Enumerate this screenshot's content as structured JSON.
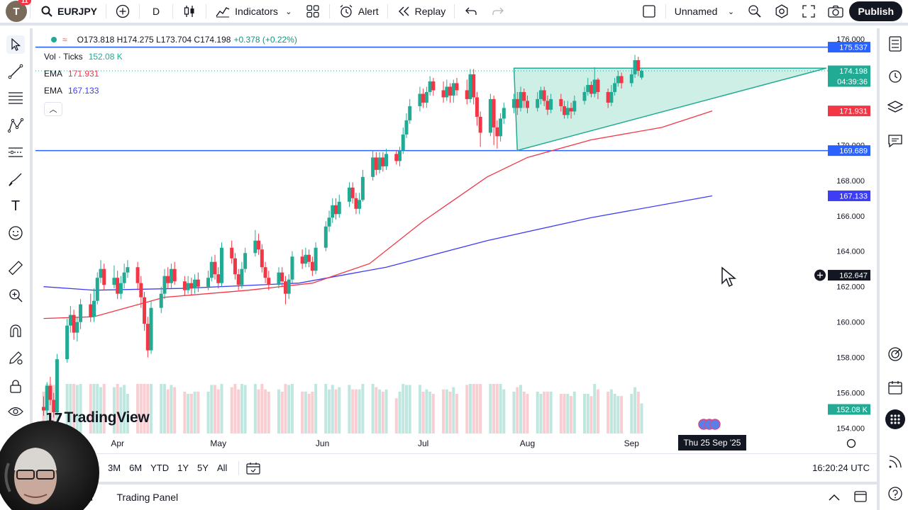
{
  "toolbar": {
    "avatar_letter": "T",
    "notif_count": "11",
    "symbol": "EURJPY",
    "interval": "D",
    "indicators_label": "Indicators",
    "alert_label": "Alert",
    "replay_label": "Replay",
    "layout_name": "Unnamed",
    "publish_label": "Publish"
  },
  "legend": {
    "ohlc": "O173.818 H174.275 L173.704 C174.198",
    "change": "+0.378 (+0.22%)",
    "volume_label": "Vol · Ticks",
    "volume_value": "152.08 K",
    "ema1_label": "EMA",
    "ema1_value": "171.931",
    "ema2_label": "EMA",
    "ema2_value": "167.133"
  },
  "price_scale": {
    "ticks": [
      "176.000",
      "170.000",
      "168.000",
      "166.000",
      "164.000",
      "162.000",
      "160.000",
      "158.000",
      "156.000",
      "154.000"
    ],
    "labels": [
      {
        "text": "175.537",
        "color": "#2962ff"
      },
      {
        "text": "174.198",
        "color": "#22ab94"
      },
      {
        "text": "04:39:36",
        "color": "#22ab94"
      },
      {
        "text": "171.931",
        "color": "#f23645"
      },
      {
        "text": "169.689",
        "color": "#2962ff"
      },
      {
        "text": "167.133",
        "color": "#3d3df5"
      },
      {
        "text": "162.647",
        "color": "#131722"
      },
      {
        "text": "152.08 K",
        "color": "#22ab94"
      }
    ]
  },
  "time_scale": {
    "months": [
      "Apr",
      "May",
      "Jun",
      "Jul",
      "Aug",
      "Sep"
    ],
    "crosshair_date": "Thu 25 Sep '25"
  },
  "bottom": {
    "ranges": [
      "3M",
      "6M",
      "YTD",
      "1Y",
      "5Y",
      "All"
    ],
    "clock": "16:20:24 UTC",
    "panel_tab_partial": "er",
    "trading_panel": "Trading Panel"
  },
  "watermark": "TradingView",
  "colors": {
    "up": "#22ab94",
    "down": "#f23645",
    "ema_fast": "#f23645",
    "ema_slow": "#3d3df5",
    "hline": "#2962ff",
    "triangle_fill": "#b9e8dc"
  },
  "chart_data": {
    "type": "candlestick",
    "symbol": "EURJPY",
    "interval": "D",
    "ylim": [
      153.7,
      176.6
    ],
    "x_range": [
      "2025-03-08",
      "2025-10-29"
    ],
    "horizontal_lines": [
      175.537,
      169.689
    ],
    "triangle": [
      [
        "2025-07-28",
        174.35
      ],
      [
        "2025-10-29",
        174.35
      ],
      [
        "2025-07-29",
        169.7
      ]
    ],
    "ema_fast": [
      [
        "2025-03-10",
        160.2
      ],
      [
        "2025-03-25",
        160.3
      ],
      [
        "2025-04-15",
        161.4
      ],
      [
        "2025-05-10",
        161.8
      ],
      [
        "2025-05-29",
        162.2
      ],
      [
        "2025-06-15",
        163.3
      ],
      [
        "2025-07-01",
        165.7
      ],
      [
        "2025-07-20",
        168.2
      ],
      [
        "2025-08-01",
        169.3
      ],
      [
        "2025-08-20",
        170.3
      ],
      [
        "2025-09-10",
        171.0
      ],
      [
        "2025-09-25",
        171.931
      ]
    ],
    "ema_slow": [
      [
        "2025-03-10",
        162.0
      ],
      [
        "2025-03-25",
        161.8
      ],
      [
        "2025-04-20",
        161.9
      ],
      [
        "2025-05-25",
        162.2
      ],
      [
        "2025-06-20",
        163.1
      ],
      [
        "2025-07-20",
        164.6
      ],
      [
        "2025-08-20",
        165.9
      ],
      [
        "2025-09-25",
        167.133
      ]
    ],
    "candles_ohlc": [
      [
        155.2,
        155.0,
        155.8,
        154.7
      ],
      [
        155.0,
        156.4,
        156.6,
        154.8
      ],
      [
        156.4,
        155.6,
        156.9,
        155.3
      ],
      [
        155.6,
        154.9,
        156.0,
        154.6
      ],
      [
        154.9,
        157.9,
        158.2,
        154.8
      ],
      [
        157.9,
        159.8,
        160.2,
        157.7
      ],
      [
        159.8,
        160.4,
        160.9,
        159.4
      ],
      [
        160.4,
        159.4,
        160.7,
        159.0
      ],
      [
        159.4,
        160.0,
        160.3,
        158.9
      ],
      [
        160.0,
        161.0,
        161.3,
        159.6
      ],
      [
        161.0,
        160.3,
        161.6,
        160.0
      ],
      [
        160.3,
        161.2,
        161.9,
        160.0
      ],
      [
        161.2,
        162.5,
        162.8,
        161.0
      ],
      [
        162.5,
        163.0,
        163.5,
        162.2
      ],
      [
        163.0,
        162.1,
        163.3,
        161.8
      ],
      [
        162.1,
        162.5,
        163.2,
        161.9
      ],
      [
        162.5,
        161.6,
        162.9,
        161.3
      ],
      [
        161.6,
        162.2,
        162.6,
        161.3
      ],
      [
        162.2,
        162.8,
        163.3,
        161.9
      ],
      [
        162.8,
        163.1,
        163.5,
        162.5
      ],
      [
        163.1,
        162.2,
        163.4,
        161.8
      ],
      [
        162.2,
        161.4,
        162.6,
        160.8
      ],
      [
        161.4,
        159.9,
        161.7,
        159.5
      ],
      [
        159.9,
        158.4,
        160.3,
        158.0
      ],
      [
        158.4,
        160.8,
        161.2,
        158.2
      ],
      [
        160.8,
        161.6,
        162.0,
        160.5
      ],
      [
        161.6,
        162.6,
        163.0,
        161.3
      ],
      [
        162.6,
        162.2,
        163.1,
        161.9
      ],
      [
        162.2,
        163.0,
        163.3,
        161.9
      ],
      [
        163.0,
        162.3,
        163.4,
        162.1
      ],
      [
        162.3,
        161.8,
        162.6,
        161.5
      ],
      [
        161.8,
        162.2,
        162.6,
        161.6
      ],
      [
        162.2,
        161.9,
        162.5,
        161.5
      ],
      [
        161.9,
        162.4,
        162.7,
        161.6
      ],
      [
        162.4,
        162.0,
        162.8,
        161.7
      ],
      [
        162.0,
        162.5,
        162.9,
        161.8
      ],
      [
        162.5,
        163.4,
        163.7,
        162.3
      ],
      [
        163.4,
        162.7,
        163.8,
        162.4
      ],
      [
        162.7,
        162.2,
        163.1,
        161.9
      ],
      [
        162.2,
        164.2,
        164.5,
        162.0
      ],
      [
        164.2,
        163.6,
        164.6,
        163.3
      ],
      [
        163.6,
        162.7,
        163.9,
        162.4
      ],
      [
        162.7,
        162.1,
        163.0,
        161.8
      ],
      [
        162.1,
        163.0,
        163.4,
        161.9
      ],
      [
        163.0,
        163.9,
        164.2,
        162.8
      ],
      [
        163.9,
        164.6,
        165.2,
        163.7
      ],
      [
        164.6,
        164.1,
        165.0,
        163.8
      ],
      [
        164.1,
        163.1,
        164.4,
        162.8
      ],
      [
        163.1,
        162.5,
        163.4,
        162.2
      ],
      [
        162.5,
        162.1,
        162.9,
        161.8
      ],
      [
        162.1,
        162.8,
        163.1,
        161.9
      ],
      [
        162.8,
        162.3,
        163.1,
        162.0
      ],
      [
        162.3,
        161.6,
        162.6,
        161.0
      ],
      [
        161.6,
        162.4,
        162.7,
        161.3
      ],
      [
        162.4,
        163.7,
        164.0,
        162.2
      ],
      [
        163.7,
        163.3,
        164.1,
        163.0
      ],
      [
        163.3,
        163.8,
        164.2,
        163.1
      ],
      [
        163.8,
        163.4,
        164.1,
        163.1
      ],
      [
        163.4,
        162.9,
        163.7,
        162.6
      ],
      [
        162.9,
        164.2,
        164.5,
        162.7
      ],
      [
        164.2,
        165.4,
        165.7,
        164.0
      ],
      [
        165.4,
        165.9,
        166.3,
        165.1
      ],
      [
        165.9,
        166.6,
        167.0,
        165.6
      ],
      [
        166.6,
        166.1,
        167.0,
        165.8
      ],
      [
        166.1,
        166.8,
        167.2,
        165.9
      ],
      [
        166.8,
        167.6,
        167.9,
        166.5
      ],
      [
        167.6,
        167.0,
        167.9,
        166.7
      ],
      [
        167.0,
        166.4,
        167.3,
        166.1
      ],
      [
        166.4,
        166.9,
        167.3,
        166.1
      ],
      [
        166.9,
        168.2,
        168.6,
        166.8
      ],
      [
        168.2,
        169.3,
        169.7,
        168.0
      ],
      [
        169.3,
        168.6,
        169.6,
        168.3
      ],
      [
        168.6,
        169.3,
        169.6,
        168.4
      ],
      [
        169.3,
        168.8,
        169.6,
        168.5
      ],
      [
        168.8,
        169.5,
        169.8,
        168.6
      ],
      [
        169.5,
        169.1,
        169.7,
        168.9
      ],
      [
        169.1,
        169.7,
        169.9,
        168.8
      ],
      [
        169.7,
        170.6,
        171.0,
        169.5
      ],
      [
        170.6,
        171.4,
        171.8,
        170.4
      ],
      [
        171.4,
        172.2,
        172.6,
        171.2
      ],
      [
        172.2,
        172.9,
        173.3,
        171.9
      ],
      [
        172.9,
        172.4,
        173.2,
        172.1
      ],
      [
        172.4,
        173.0,
        173.3,
        172.1
      ],
      [
        173.0,
        173.6,
        173.9,
        172.8
      ],
      [
        173.6,
        173.1,
        173.8,
        172.8
      ],
      [
        173.1,
        172.7,
        173.6,
        172.4
      ],
      [
        172.7,
        173.3,
        173.7,
        172.5
      ],
      [
        173.3,
        172.8,
        173.5,
        172.4
      ],
      [
        172.8,
        173.5,
        173.7,
        172.4
      ],
      [
        173.5,
        173.1,
        173.8,
        172.8
      ],
      [
        173.1,
        172.6,
        173.7,
        172.3
      ],
      [
        172.6,
        174.0,
        174.3,
        172.4
      ],
      [
        174.0,
        172.7,
        174.3,
        172.3
      ],
      [
        172.7,
        171.6,
        173.0,
        171.1
      ],
      [
        171.6,
        170.7,
        171.9,
        169.9
      ],
      [
        170.7,
        172.6,
        172.9,
        170.5
      ],
      [
        172.6,
        171.0,
        172.8,
        170.0
      ],
      [
        171.0,
        170.5,
        171.4,
        169.8
      ],
      [
        170.5,
        171.5,
        171.8,
        170.2
      ],
      [
        171.5,
        172.1,
        172.4,
        171.2
      ],
      [
        172.1,
        172.6,
        172.9,
        171.8
      ],
      [
        172.6,
        172.1,
        173.0,
        171.7
      ],
      [
        172.1,
        173.0,
        173.3,
        171.9
      ],
      [
        173.0,
        172.5,
        173.2,
        172.1
      ],
      [
        172.5,
        172.1,
        172.8,
        171.8
      ],
      [
        172.1,
        172.6,
        173.0,
        171.9
      ],
      [
        172.6,
        173.1,
        173.3,
        172.3
      ],
      [
        173.1,
        172.5,
        173.3,
        172.2
      ],
      [
        172.5,
        172.0,
        172.8,
        171.7
      ],
      [
        172.0,
        172.6,
        172.9,
        171.8
      ],
      [
        172.6,
        172.2,
        172.9,
        171.9
      ],
      [
        172.2,
        171.7,
        172.5,
        171.5
      ],
      [
        171.7,
        172.1,
        172.5,
        171.5
      ],
      [
        172.1,
        171.9,
        172.4,
        171.5
      ],
      [
        171.9,
        172.5,
        172.8,
        171.7
      ],
      [
        172.5,
        173.0,
        173.3,
        172.3
      ],
      [
        173.0,
        173.4,
        173.8,
        172.8
      ],
      [
        173.4,
        172.9,
        173.6,
        172.7
      ],
      [
        172.9,
        173.7,
        174.4,
        172.7
      ],
      [
        173.7,
        173.0,
        173.8,
        172.6
      ],
      [
        173.0,
        172.4,
        173.2,
        172.1
      ],
      [
        172.4,
        173.0,
        173.4,
        172.2
      ],
      [
        173.0,
        173.5,
        173.8,
        172.8
      ],
      [
        173.5,
        173.9,
        174.2,
        173.3
      ],
      [
        173.9,
        173.5,
        174.1,
        173.2
      ],
      [
        173.5,
        174.0,
        174.3,
        173.3
      ],
      [
        174.0,
        174.8,
        175.1,
        173.8
      ],
      [
        174.8,
        174.2,
        175.0,
        173.9
      ],
      [
        173.818,
        174.198,
        174.275,
        173.704
      ]
    ],
    "volume_max": 152.08,
    "volume_last": "152.08 K"
  }
}
